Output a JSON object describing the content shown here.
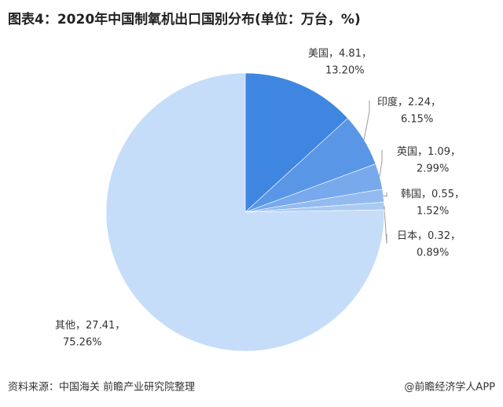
{
  "chart_data": {
    "type": "pie",
    "title": "图表4：2020年中国制氧机出口国别分布(单位：万台，%)",
    "categories": [
      "美国",
      "印度",
      "英国",
      "韩国",
      "日本",
      "其他"
    ],
    "values": [
      4.81,
      2.24,
      1.09,
      0.55,
      0.32,
      27.41
    ],
    "percents": [
      {
        "value": 13.2,
        "label": "13.20%"
      },
      {
        "value": 6.15,
        "label": "6.15%"
      },
      {
        "value": 2.99,
        "label": "2.99%"
      },
      {
        "value": 1.52,
        "label": "1.52%"
      },
      {
        "value": 0.89,
        "label": "0.89%"
      },
      {
        "value": 75.26,
        "label": "75.26%"
      }
    ],
    "separator": "，",
    "colors": [
      "#3f86e0",
      "#5a96e6",
      "#78a9ec",
      "#93bbf0",
      "#a8caf3",
      "#c6ddf9"
    ],
    "source": "资料来源：中国海关 前瞻产业研究院整理",
    "credit": "@前瞻经济学人APP"
  }
}
